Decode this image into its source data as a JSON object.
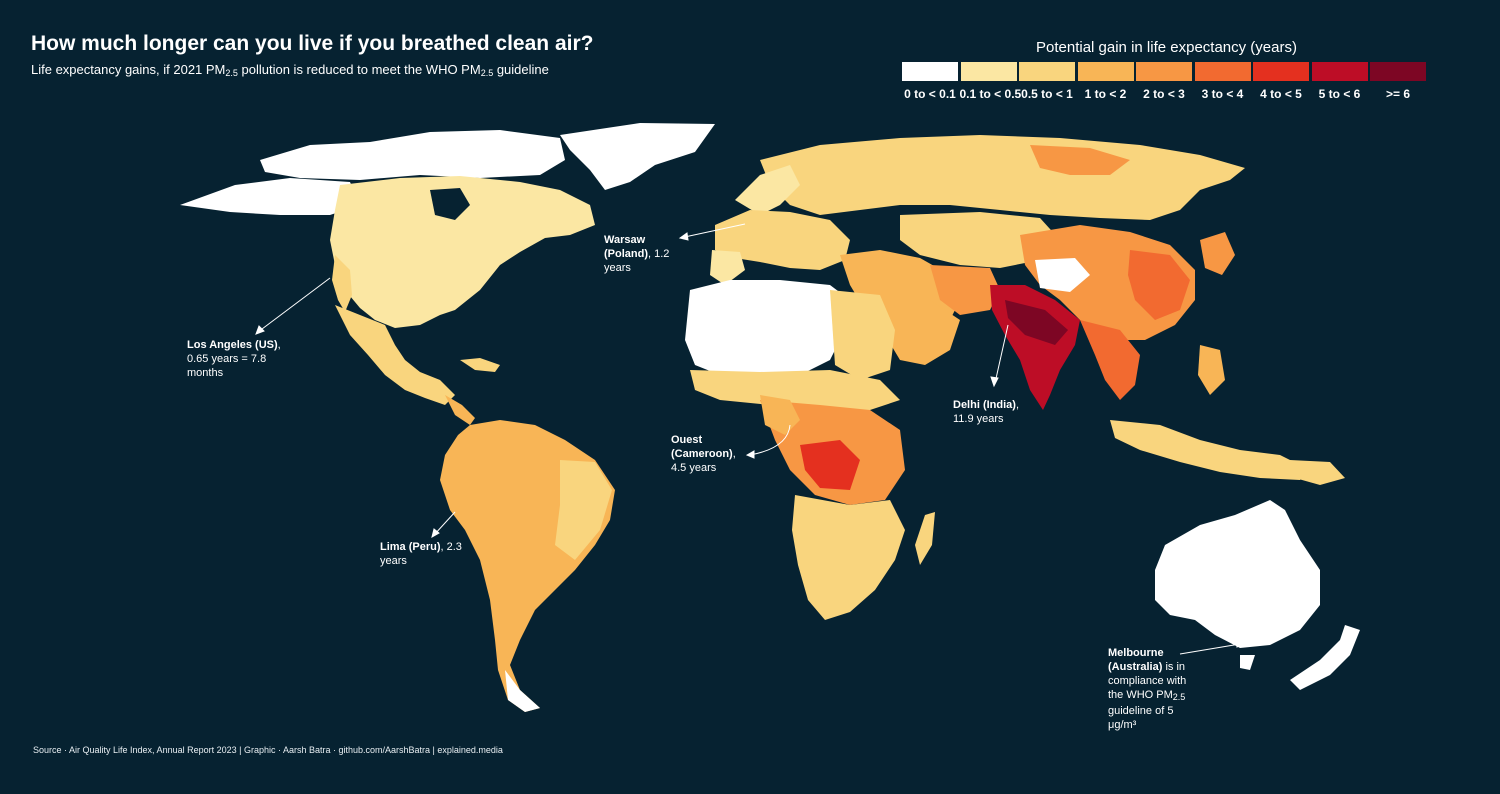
{
  "title": "How much longer can you live if you breathed clean air?",
  "subtitle": {
    "part1": "Life expectancy gains, if 2021 PM",
    "sub1": "2.5",
    "part2": " pollution is reduced to meet the WHO PM",
    "sub2": "2.5",
    "part3": " guideline"
  },
  "legend": {
    "title": "Potential gain in life expectancy (years)",
    "items": [
      {
        "label": "0 to < 0.1",
        "color": "#ffffff"
      },
      {
        "label": "0.1 to < 0.5",
        "color": "#fbe7a3"
      },
      {
        "label": "0.5 to < 1",
        "color": "#f9d57e"
      },
      {
        "label": "1 to < 2",
        "color": "#f8b556"
      },
      {
        "label": "2 to < 3",
        "color": "#f79744"
      },
      {
        "label": "3 to < 4",
        "color": "#f26a30"
      },
      {
        "label": "4 to < 5",
        "color": "#e4301f"
      },
      {
        "label": "5 to < 6",
        "color": "#bd0d26"
      },
      {
        "label": ">= 6",
        "color": "#7d0624"
      }
    ]
  },
  "annotations": {
    "warsaw": {
      "name": "Warsaw (Poland)",
      "value": ", 1.2 years"
    },
    "los_angeles": {
      "name": "Los Angeles (US)",
      "value": ", 0.65 years = 7.8 months"
    },
    "delhi": {
      "name": "Delhi (India)",
      "value": ", 11.9 years"
    },
    "ouest": {
      "name": "Ouest (Cameroon)",
      "value": ", 4.5 years"
    },
    "lima": {
      "name": "Lima (Peru)",
      "value": ", 2.3 years"
    },
    "melbourne": {
      "name": "Melbourne (Australia)",
      "value": " is in compliance with the WHO PM",
      "sub": "2.5",
      "value2": " guideline of 5 μg/m³"
    }
  },
  "source": "Source · Air Quality Life Index, Annual Report 2023 | Graphic · Aarsh Batra · github.com/AarshBatra | explained.media",
  "colors": {
    "background": "#062231",
    "borders": "#ffffff"
  }
}
